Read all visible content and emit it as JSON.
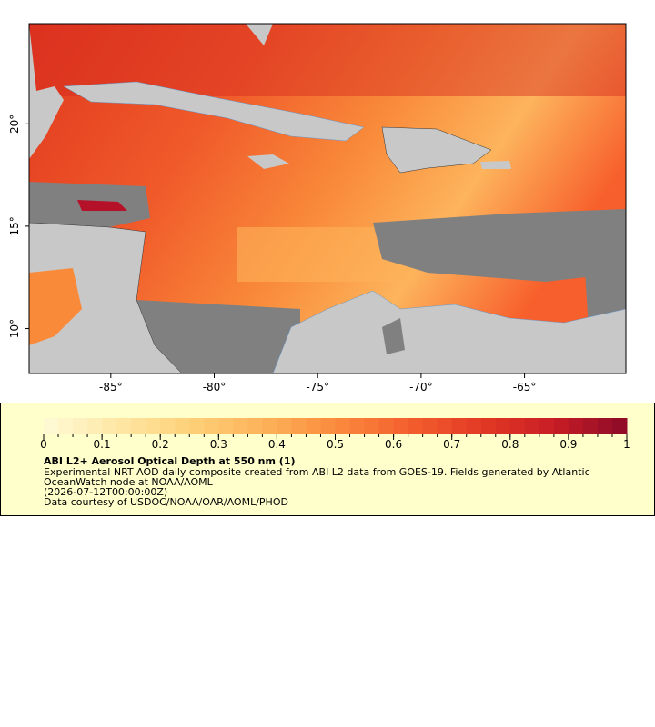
{
  "chart_data": {
    "type": "map",
    "xlim": [
      -88.95,
      -60.1
    ],
    "ylim": [
      7.8,
      24.9
    ],
    "xticks": [
      {
        "value": -85,
        "label": "-85°"
      },
      {
        "value": -80,
        "label": "-80°"
      },
      {
        "value": -75,
        "label": "-75°"
      },
      {
        "value": -70,
        "label": "-70°"
      },
      {
        "value": -65,
        "label": "-65°"
      }
    ],
    "yticks": [
      {
        "value": 10,
        "label": "10°"
      },
      {
        "value": 15,
        "label": "15°"
      },
      {
        "value": 20,
        "label": "20°"
      }
    ],
    "colorbar": {
      "lim": [
        0,
        1
      ],
      "ticks": [
        0,
        0.1,
        0.2,
        0.3,
        0.4,
        0.5,
        0.6,
        0.7,
        0.8,
        0.9,
        1
      ],
      "colors": [
        "#fffbd8",
        "#fee7a6",
        "#fed17a",
        "#fdb35a",
        "#fb8b3e",
        "#f4602e",
        "#e33a25",
        "#c81d25",
        "#8c0a28"
      ]
    },
    "title": "ABI L2+ Aerosol Optical Depth at 550 nm (1)",
    "description": [
      "Experimental NRT AOD daily composite created from ABI L2 data from GOES-19. Fields generated by Atlantic",
      "OceanWatch node at NOAA/AOML",
      "(2026-07-12T00:00:00Z)",
      "Data courtesy of USDOC/NOAA/OAR/AOML/PHOD"
    ]
  }
}
